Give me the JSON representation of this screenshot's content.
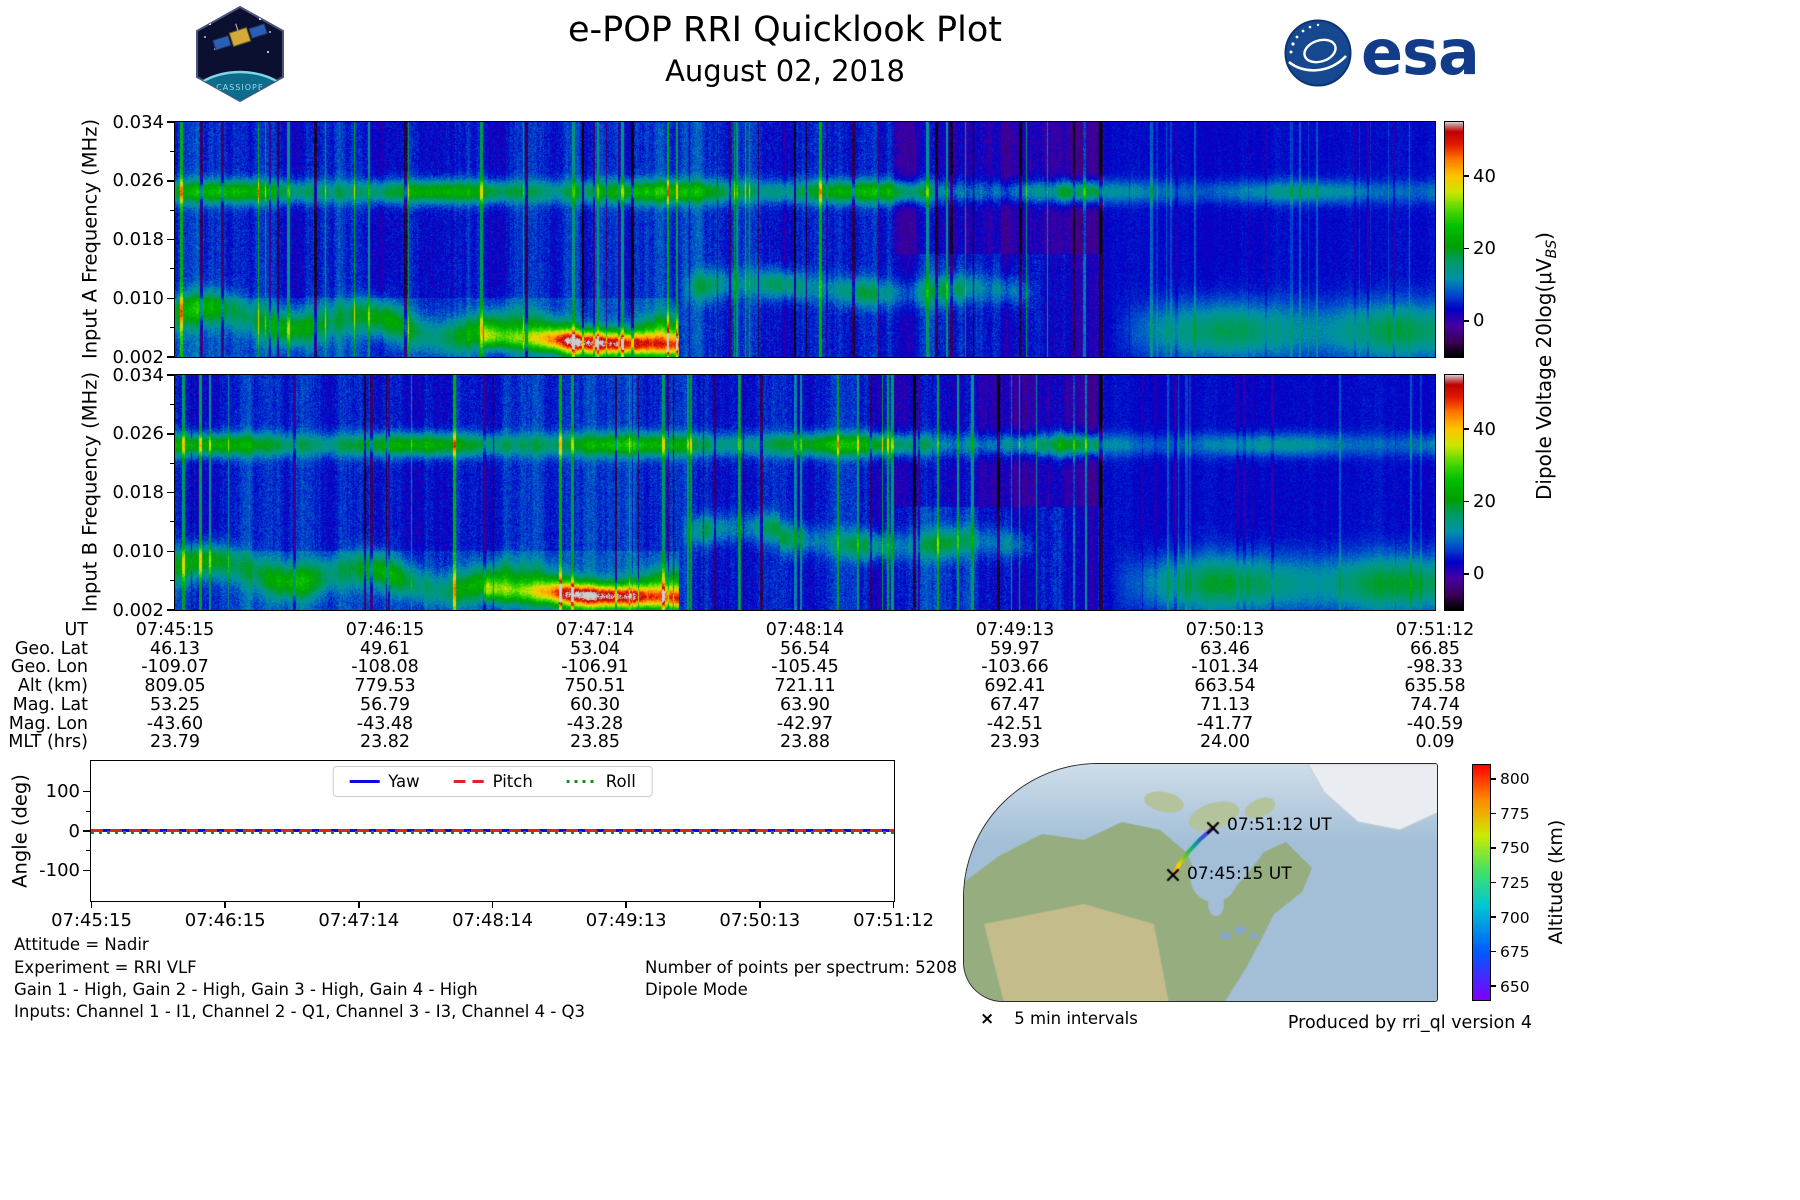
{
  "header": {
    "title": "e-POP RRI Quicklook Plot",
    "date": "August 02, 2018",
    "esa_wordmark": "esa",
    "patch_label": "CASSIOPE"
  },
  "chart_data": [
    {
      "type": "heatmap",
      "name": "input-a-spectrogram",
      "ylabel": "Input A Frequency (MHz)",
      "ylim": [
        0.002,
        0.034
      ],
      "yticks": [
        "0.002",
        "0.010",
        "0.018",
        "0.026",
        "0.034"
      ],
      "x_span_ut": [
        "07:45:15",
        "07:51:12"
      ],
      "value_range": [
        -10,
        55
      ],
      "colorbar_ticks": [
        "0",
        "20",
        "40"
      ],
      "colormap": "nipy_spectral-like",
      "features": {
        "carrier_band_mhz": 0.0245,
        "descending_low_band_mhz": [
          0.008,
          0.004
        ],
        "hot_streak_time_frac": [
          0.25,
          0.39
        ],
        "mid_band_mhz": 0.0115,
        "mid_band_time_frac": [
          0.4,
          0.68
        ],
        "right_low_patch_mhz": [
          0.003,
          0.008
        ],
        "right_low_patch_time_frac": [
          0.74,
          1.0
        ]
      }
    },
    {
      "type": "heatmap",
      "name": "input-b-spectrogram",
      "ylabel": "Input B Frequency (MHz)",
      "ylim": [
        0.002,
        0.034
      ],
      "yticks": [
        "0.002",
        "0.010",
        "0.018",
        "0.026",
        "0.034"
      ],
      "x_span_ut": [
        "07:45:15",
        "07:51:12"
      ],
      "value_range": [
        -10,
        55
      ],
      "colorbar_ticks": [
        "0",
        "20",
        "40"
      ],
      "colormap": "nipy_spectral-like",
      "features": {
        "carrier_band_mhz": 0.0245,
        "descending_low_band_mhz": [
          0.008,
          0.004
        ],
        "hot_streak_time_frac": [
          0.25,
          0.39
        ],
        "mid_band_mhz": 0.0125,
        "mid_band_time_frac": [
          0.4,
          0.68
        ],
        "right_low_patch_mhz": [
          0.003,
          0.008
        ],
        "right_low_patch_time_frac": [
          0.74,
          1.0
        ]
      }
    },
    {
      "type": "line",
      "name": "attitude-angle-plot",
      "ylabel": "Angle (deg)",
      "ylim": [
        -175,
        175
      ],
      "yticks": [
        "-100",
        "0",
        "100"
      ],
      "xticks": [
        "07:45:15",
        "07:46:15",
        "07:47:14",
        "07:48:14",
        "07:49:13",
        "07:50:13",
        "07:51:12"
      ],
      "legend_position": "top-center",
      "series": [
        {
          "name": "Yaw",
          "style": "solid",
          "color": "#0a0ae0",
          "values_deg": [
            0,
            0,
            0,
            0,
            0,
            0,
            0
          ]
        },
        {
          "name": "Pitch",
          "style": "dashed",
          "color": "#e02222",
          "values_deg": [
            0,
            0,
            0,
            0,
            0,
            0,
            0
          ]
        },
        {
          "name": "Roll",
          "style": "dotted",
          "color": "#1a8c1a",
          "values_deg": [
            0,
            0,
            0,
            0,
            0,
            0,
            0
          ]
        }
      ]
    }
  ],
  "colorbar": {
    "label_pre": "Dipole Voltage 20log(μV",
    "label_sub": "BS",
    "label_post": ")"
  },
  "ephemeris": {
    "row_labels": [
      "UT",
      "Geo. Lat",
      "Geo. Lon",
      "Alt (km)",
      "Mag. Lat",
      "Mag. Lon",
      "MLT (hrs)"
    ],
    "rows": [
      [
        "07:45:15",
        "07:46:15",
        "07:47:14",
        "07:48:14",
        "07:49:13",
        "07:50:13",
        "07:51:12"
      ],
      [
        "46.13",
        "49.61",
        "53.04",
        "56.54",
        "59.97",
        "63.46",
        "66.85"
      ],
      [
        "-109.07",
        "-108.08",
        "-106.91",
        "-105.45",
        "-103.66",
        "-101.34",
        "-98.33"
      ],
      [
        "809.05",
        "779.53",
        "750.51",
        "721.11",
        "692.41",
        "663.54",
        "635.58"
      ],
      [
        "53.25",
        "56.79",
        "60.30",
        "63.90",
        "67.47",
        "71.13",
        "74.74"
      ],
      [
        "-43.60",
        "-43.48",
        "-43.28",
        "-42.97",
        "-42.51",
        "-41.77",
        "-40.59"
      ],
      [
        "23.79",
        "23.82",
        "23.85",
        "23.88",
        "23.93",
        "24.00",
        "0.09"
      ]
    ]
  },
  "map": {
    "track_start_label": "07:45:15 UT",
    "track_end_label": "07:51:12 UT",
    "marker_glyph": "×",
    "interval_note": "5 min intervals",
    "altitude_colorbar": {
      "label": "Altitude (km)",
      "ticks": [
        "650",
        "675",
        "700",
        "725",
        "750",
        "775",
        "800"
      ],
      "range": [
        640,
        810
      ]
    }
  },
  "notes": {
    "attitude": "Attitude = Nadir",
    "experiment": "Experiment = RRI VLF",
    "gains": "Gain 1 - High, Gain 2 - High, Gain 3 - High, Gain 4 - High",
    "inputs": "Inputs: Channel 1 - I1, Channel 2 - Q1, Channel 3 - I3, Channel 4 - Q3",
    "points_per_spectrum": "Number of points per spectrum: 5208",
    "mode": "Dipole Mode",
    "produced_by": "Produced by rri_ql version 4"
  }
}
